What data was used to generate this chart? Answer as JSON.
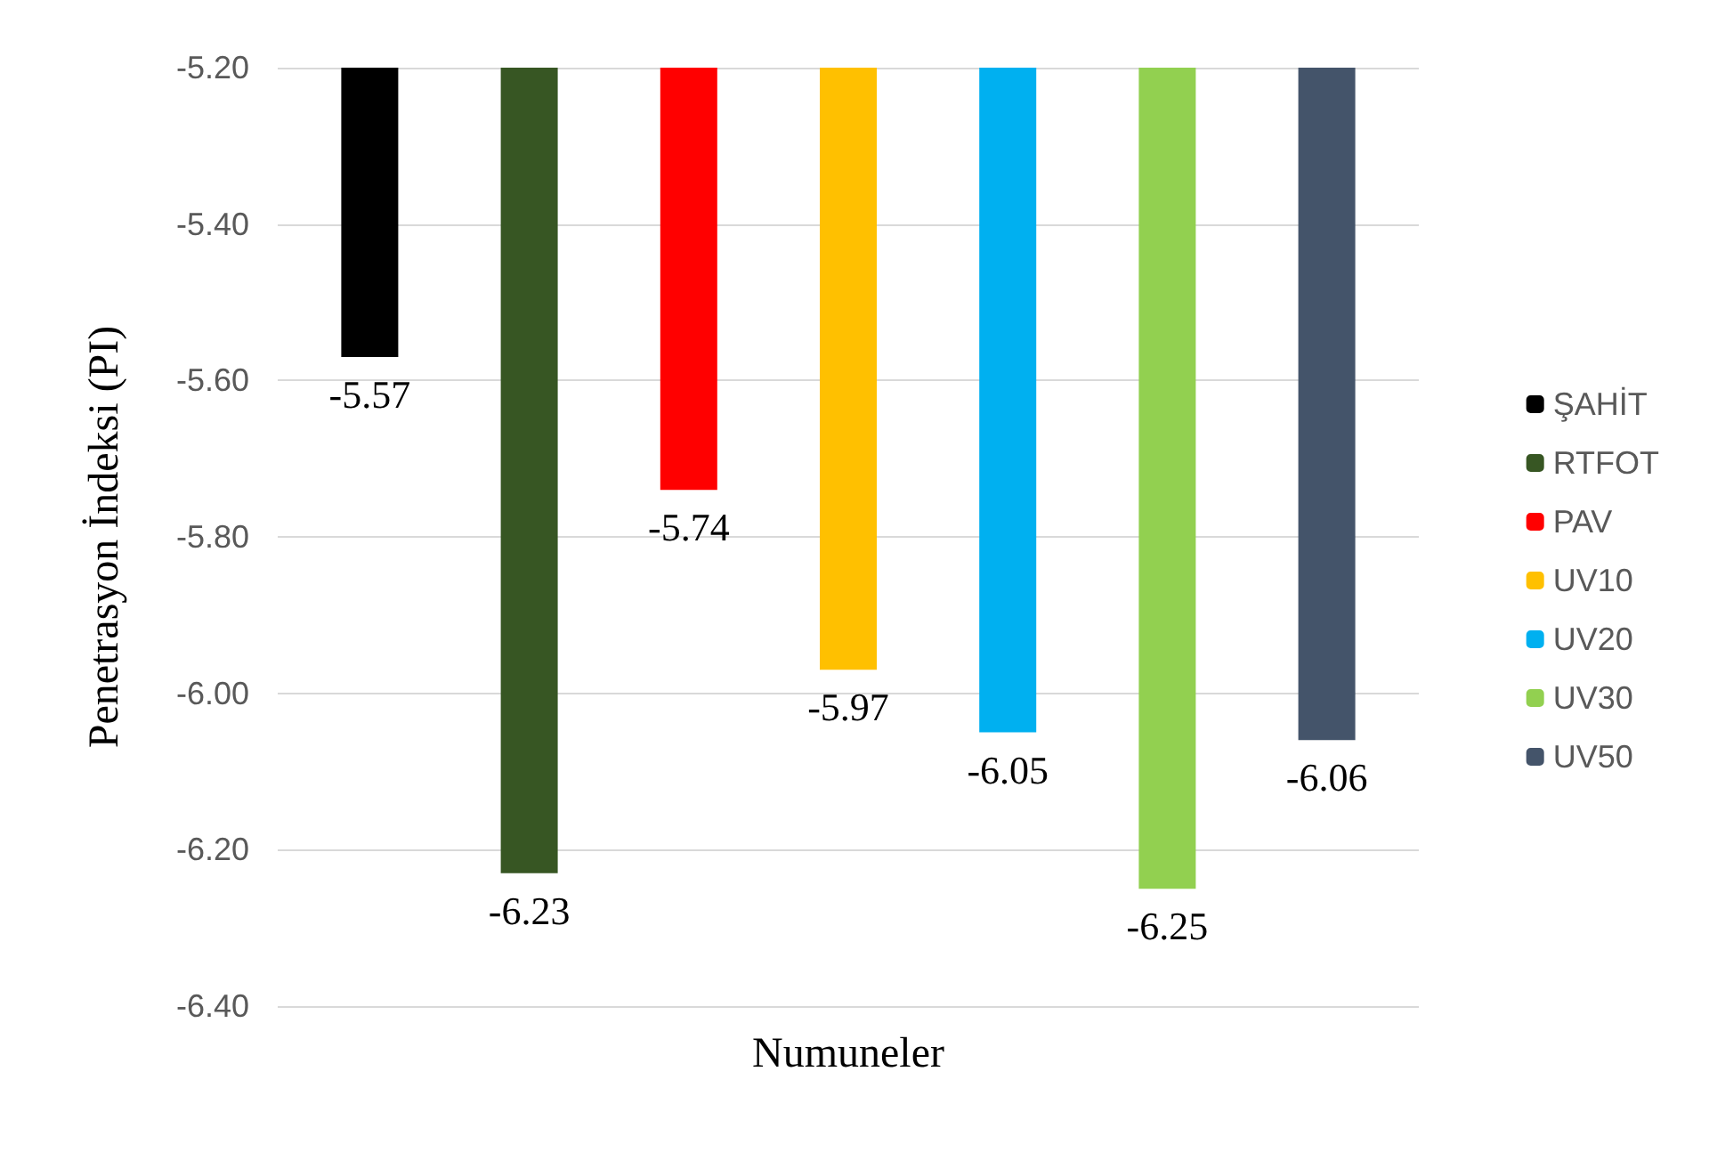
{
  "chart_data": {
    "type": "bar",
    "xlabel": "Numuneler",
    "ylabel": "Penetrasyon İndeksi (PI)",
    "categories": [
      null
    ],
    "series": [
      {
        "name": "ŞAHİT",
        "color": "#000000",
        "values": [
          -5.57
        ]
      },
      {
        "name": "RTFOT",
        "color": "#375623",
        "values": [
          -6.23
        ]
      },
      {
        "name": "PAV",
        "color": "#ff0000",
        "values": [
          -5.74
        ]
      },
      {
        "name": "UV10",
        "color": "#ffc000",
        "values": [
          -5.97
        ]
      },
      {
        "name": "UV20",
        "color": "#00b0f0",
        "values": [
          -6.05
        ]
      },
      {
        "name": "UV30",
        "color": "#92d050",
        "values": [
          -6.25
        ]
      },
      {
        "name": "UV50",
        "color": "#44546a",
        "values": [
          -6.06
        ]
      }
    ],
    "ylim": [
      -6.4,
      -5.2
    ],
    "yticks": [
      {
        "value": -6.4,
        "label": "-6.40"
      },
      {
        "value": -6.2,
        "label": "-6.20"
      },
      {
        "value": -6.0,
        "label": "-6.00"
      },
      {
        "value": -5.8,
        "label": "-5.80"
      },
      {
        "value": -5.6,
        "label": "-5.60"
      },
      {
        "value": -5.4,
        "label": "-5.40"
      },
      {
        "value": -5.2,
        "label": "-5.20"
      }
    ],
    "grid": "y",
    "legend": "right",
    "data_labels": true
  }
}
